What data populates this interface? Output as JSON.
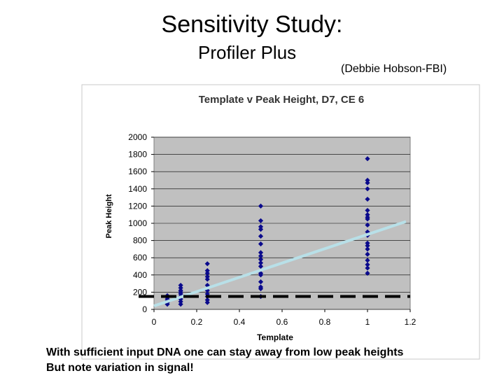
{
  "slide": {
    "title": "Sensitivity Study:",
    "subtitle": "Profiler Plus",
    "credit": "(Debbie Hobson-FBI)",
    "caption_line1": "With sufficient input DNA one can stay away from low peak heights",
    "caption_line2": "But note variation in signal!"
  },
  "colors": {
    "plot_bg": "#c0c0c0",
    "points": "#0a0a8c",
    "trendline": "#b8e0e8",
    "threshold": "#000000"
  },
  "chart_data": {
    "type": "scatter",
    "title": "Template v Peak Height, D7, CE 6",
    "xlabel": "Template",
    "ylabel": "Peak Height",
    "xlim": [
      0,
      1.2
    ],
    "ylim": [
      0,
      2000
    ],
    "xticks": [
      "0",
      "0.2",
      "0.4",
      "0.6",
      "0.8",
      "1",
      "1.2"
    ],
    "yticks": [
      "0",
      "200",
      "400",
      "600",
      "800",
      "1000",
      "1200",
      "1400",
      "1600",
      "1800",
      "2000"
    ],
    "series": [
      {
        "name": "Peak Height",
        "points": [
          [
            0.0625,
            60
          ],
          [
            0.0625,
            80
          ],
          [
            0.0625,
            100
          ],
          [
            0.0625,
            120
          ],
          [
            0.0625,
            140
          ],
          [
            0.0625,
            160
          ],
          [
            0.125,
            60
          ],
          [
            0.125,
            90
          ],
          [
            0.125,
            120
          ],
          [
            0.125,
            150
          ],
          [
            0.125,
            180
          ],
          [
            0.125,
            200
          ],
          [
            0.125,
            220
          ],
          [
            0.125,
            250
          ],
          [
            0.125,
            280
          ],
          [
            0.25,
            80
          ],
          [
            0.25,
            110
          ],
          [
            0.25,
            150
          ],
          [
            0.25,
            180
          ],
          [
            0.25,
            220
          ],
          [
            0.25,
            280
          ],
          [
            0.25,
            350
          ],
          [
            0.25,
            380
          ],
          [
            0.25,
            420
          ],
          [
            0.25,
            450
          ],
          [
            0.25,
            530
          ],
          [
            0.5,
            150
          ],
          [
            0.5,
            240
          ],
          [
            0.5,
            260
          ],
          [
            0.5,
            320
          ],
          [
            0.5,
            400
          ],
          [
            0.5,
            420
          ],
          [
            0.5,
            500
          ],
          [
            0.5,
            540
          ],
          [
            0.5,
            580
          ],
          [
            0.5,
            620
          ],
          [
            0.5,
            660
          ],
          [
            0.5,
            760
          ],
          [
            0.5,
            850
          ],
          [
            0.5,
            930
          ],
          [
            0.5,
            960
          ],
          [
            0.5,
            1030
          ],
          [
            0.5,
            1200
          ],
          [
            1,
            420
          ],
          [
            1,
            480
          ],
          [
            1,
            520
          ],
          [
            1,
            570
          ],
          [
            1,
            640
          ],
          [
            1,
            700
          ],
          [
            1,
            740
          ],
          [
            1,
            770
          ],
          [
            1,
            860
          ],
          [
            1,
            900
          ],
          [
            1,
            980
          ],
          [
            1,
            1050
          ],
          [
            1,
            1070
          ],
          [
            1,
            1100
          ],
          [
            1,
            1150
          ],
          [
            1,
            1280
          ],
          [
            1,
            1400
          ],
          [
            1,
            1470
          ],
          [
            1,
            1500
          ],
          [
            1,
            1750
          ]
        ]
      }
    ],
    "trendline": {
      "x": [
        0,
        1.18
      ],
      "y": [
        40,
        1020
      ]
    },
    "threshold_line": {
      "y": 150,
      "style": "dashed"
    }
  }
}
